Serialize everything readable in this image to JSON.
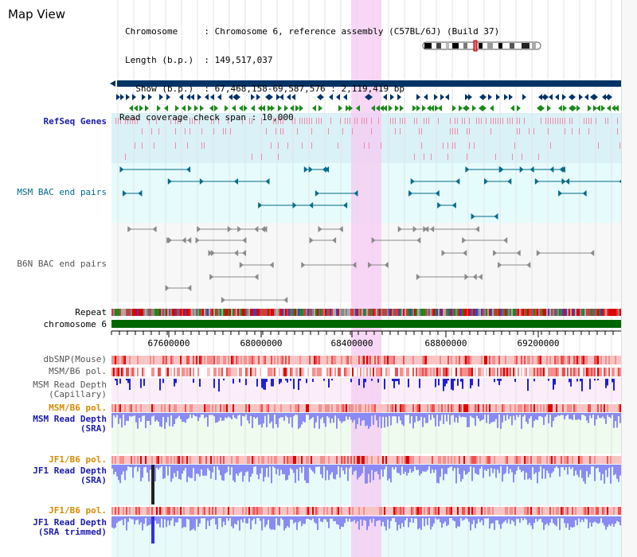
{
  "header": {
    "title": "Map View",
    "info_lines": [
      {
        "key": "Chromosome",
        "sep": "     :",
        "value": " Chromosome 6, reference assembly (C57BL/6J) (Build 37)"
      },
      {
        "key": "Length (b.p.)",
        "sep": "  :",
        "value": " 149,517,037"
      },
      {
        "key": "  Show (b.p.)",
        "sep": "  :",
        "value": " 67,468,158-69,587,576 : 2,119,419 bp"
      },
      {
        "key": "Read coverage check span",
        "sep": " :",
        "value": " 10,000"
      }
    ]
  },
  "axis": {
    "ticks": [
      "67600000",
      "68000000",
      "68400000",
      "68800000",
      "69200000"
    ]
  },
  "tracks": {
    "refseq": "RefSeq Genes",
    "msm_bac": "MSM BAC end pairs",
    "b6n_bac": "B6N BAC end pairs",
    "repeat": "Repeat",
    "chromosome": "chromosome 6",
    "dbsnp": "dbSNP(Mouse)",
    "msm_b6_pol_1": "MSM/B6 pol.",
    "msm_depth_cap_1": "MSM Read Depth",
    "msm_depth_cap_2": "(Capillary)",
    "msm_b6_pol_2": "MSM/B6 pol.",
    "msm_depth_sra_1": "MSM Read Depth",
    "msm_depth_sra_2": "(SRA)",
    "jf1_b6_pol_1": "JF1/B6 pol.",
    "jf1_depth_sra_1": "JF1 Read Depth",
    "jf1_depth_sra_2": "(SRA)",
    "jf1_b6_pol_2": "JF1/B6 pol.",
    "jf1_depth_trim_1": "JF1 Read Depth",
    "jf1_depth_trim_2": "(SRA trimmed)"
  },
  "colors": {
    "navy": "#003366",
    "teal": "#006b8a",
    "green": "#1a8a1a",
    "pink": "#f08aa8",
    "highlight": "#f5cdf2",
    "refseq_bg": "#daf1f7",
    "msm_bg": "#e6fbfb",
    "b6n_bg": "#f7f7f7",
    "grey_track": "#8a8a8a",
    "depth_blue": "#2020d0",
    "depth_light": "#8a8af5",
    "orange_label": "#d98a00",
    "blue_label": "#1a1ab0"
  }
}
